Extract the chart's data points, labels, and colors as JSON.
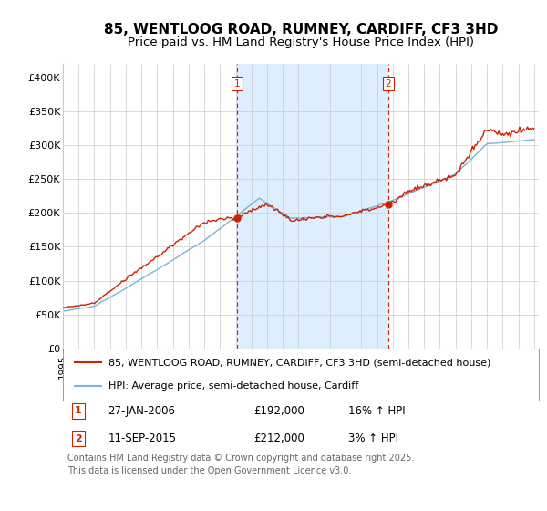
{
  "title": "85, WENTLOOG ROAD, RUMNEY, CARDIFF, CF3 3HD",
  "subtitle": "Price paid vs. HM Land Registry's House Price Index (HPI)",
  "ylim": [
    0,
    420000
  ],
  "yticks": [
    0,
    50000,
    100000,
    150000,
    200000,
    250000,
    300000,
    350000,
    400000
  ],
  "ytick_labels": [
    "£0",
    "£50K",
    "£100K",
    "£150K",
    "£200K",
    "£250K",
    "£300K",
    "£350K",
    "£400K"
  ],
  "hpi_color": "#7ab3d9",
  "price_color": "#cc2200",
  "vline_color": "#cc2200",
  "shade_color": "#ddeeff",
  "plot_bg_color": "#ffffff",
  "grid_color": "#cccccc",
  "legend_label_price": "85, WENTLOOG ROAD, RUMNEY, CARDIFF, CF3 3HD (semi-detached house)",
  "legend_label_hpi": "HPI: Average price, semi-detached house, Cardiff",
  "annotation1_date": "27-JAN-2006",
  "annotation1_price": "£192,000",
  "annotation1_pct": "16% ↑ HPI",
  "annotation1_year": 2006.08,
  "annotation1_value": 192000,
  "annotation2_date": "11-SEP-2015",
  "annotation2_price": "£212,000",
  "annotation2_pct": "3% ↑ HPI",
  "annotation2_year": 2015.7,
  "annotation2_value": 212000,
  "footer": "Contains HM Land Registry data © Crown copyright and database right 2025.\nThis data is licensed under the Open Government Licence v3.0.",
  "title_fontsize": 11,
  "subtitle_fontsize": 9.5,
  "tick_fontsize": 8,
  "legend_fontsize": 8,
  "footer_fontsize": 7,
  "annot_fontsize": 8.5
}
